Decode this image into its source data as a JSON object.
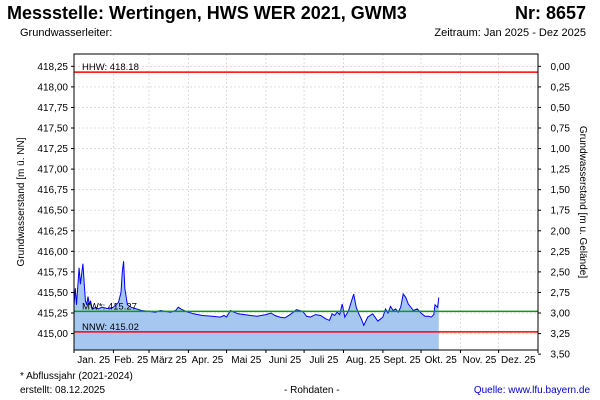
{
  "header": {
    "title": "Messstelle: Wertingen, HWS WER 2021, GWM3",
    "number": "Nr: 8657",
    "aquifer": "Grundwasserleiter:",
    "period": "Zeitraum: Jan 2025 - Dez 2025"
  },
  "footer": {
    "note": "* Abflussjahr (2021-2024)",
    "created": "erstellt:  08.12.2025",
    "rawdata": "- Rohdaten -",
    "source": "Quelle: www.lfu.bayern.de"
  },
  "chart_data": {
    "type": "area",
    "ylabel": "Grundwasserstand [m ü. NN]",
    "ylabel_right": "Grundwasserstand [m u. Gelände]",
    "ylim": [
      414.8,
      418.4
    ],
    "yticks": [
      415.0,
      415.25,
      415.5,
      415.75,
      416.0,
      416.25,
      416.5,
      416.75,
      417.0,
      417.25,
      417.5,
      417.75,
      418.0,
      418.25
    ],
    "ytick_labels": [
      "415,00",
      "415,25",
      "415,50",
      "415,75",
      "416,00",
      "416,25",
      "416,50",
      "416,75",
      "417,00",
      "417,25",
      "417,50",
      "417,75",
      "418,00",
      "418,25"
    ],
    "y2_offset": 418.25,
    "y2ticks": [
      0.0,
      0.25,
      0.5,
      0.75,
      1.0,
      1.25,
      1.5,
      1.75,
      2.0,
      2.25,
      2.5,
      2.75,
      3.0,
      3.25,
      3.5
    ],
    "y2tick_labels": [
      "0,00",
      "0,25",
      "0,50",
      "0,75",
      "1,00",
      "1,25",
      "1,50",
      "1,75",
      "2,00",
      "2,25",
      "2,50",
      "2,75",
      "3,00",
      "3,25",
      "3,50"
    ],
    "xlim": [
      "2025-01-01",
      "2026-01-01"
    ],
    "months": [
      "Jan. 25",
      "Feb. 25",
      "März 25",
      "Apr. 25",
      "Mai 25",
      "Juni 25",
      "Juli 25",
      "Aug. 25",
      "Sept. 25",
      "Okt. 25",
      "Nov. 25",
      "Dez. 25"
    ],
    "month_starts": [
      "2025-01-01",
      "2025-02-01",
      "2025-03-01",
      "2025-04-01",
      "2025-05-01",
      "2025-06-01",
      "2025-07-01",
      "2025-08-01",
      "2025-09-01",
      "2025-10-01",
      "2025-11-01",
      "2025-12-01",
      "2026-01-01"
    ],
    "grid": true,
    "reference_lines": [
      {
        "key": "hhw",
        "label": "HHW: 418.18",
        "value": 418.18,
        "color": "#ff0000"
      },
      {
        "key": "mw",
        "label": "MW*: 415.27",
        "value": 415.27,
        "color": "#00a000"
      },
      {
        "key": "nnw",
        "label": "NNW: 415.02",
        "value": 415.02,
        "color": "#ff0000"
      }
    ],
    "series": [
      {
        "line_color": "#0000ff",
        "fill_color": "#a6c8f0",
        "x": [
          "2025-01-01",
          "2025-01-02",
          "2025-01-03",
          "2025-01-05",
          "2025-01-06",
          "2025-01-08",
          "2025-01-10",
          "2025-01-11",
          "2025-01-12",
          "2025-01-13",
          "2025-01-14",
          "2025-01-15",
          "2025-01-16",
          "2025-01-18",
          "2025-01-20",
          "2025-01-23",
          "2025-01-26",
          "2025-01-29",
          "2025-02-01",
          "2025-02-03",
          "2025-02-05",
          "2025-02-07",
          "2025-02-08",
          "2025-02-09",
          "2025-02-10",
          "2025-02-12",
          "2025-02-15",
          "2025-02-19",
          "2025-02-23",
          "2025-03-01",
          "2025-03-06",
          "2025-03-10",
          "2025-03-14",
          "2025-03-18",
          "2025-03-22",
          "2025-03-24",
          "2025-03-26",
          "2025-03-30",
          "2025-04-05",
          "2025-04-12",
          "2025-04-20",
          "2025-04-26",
          "2025-04-29",
          "2025-05-01",
          "2025-05-04",
          "2025-05-10",
          "2025-05-20",
          "2025-05-25",
          "2025-05-28",
          "2025-06-01",
          "2025-06-05",
          "2025-06-08",
          "2025-06-12",
          "2025-06-16",
          "2025-06-20",
          "2025-06-25",
          "2025-06-30",
          "2025-07-03",
          "2025-07-06",
          "2025-07-10",
          "2025-07-14",
          "2025-07-18",
          "2025-07-21",
          "2025-07-23",
          "2025-07-25",
          "2025-07-27",
          "2025-07-29",
          "2025-07-31",
          "2025-08-02",
          "2025-08-04",
          "2025-08-05",
          "2025-08-07",
          "2025-08-09",
          "2025-08-11",
          "2025-08-13",
          "2025-08-15",
          "2025-08-17",
          "2025-08-20",
          "2025-08-24",
          "2025-08-28",
          "2025-09-01",
          "2025-09-03",
          "2025-09-05",
          "2025-09-07",
          "2025-09-09",
          "2025-09-11",
          "2025-09-13",
          "2025-09-15",
          "2025-09-17",
          "2025-09-19",
          "2025-09-21",
          "2025-09-25",
          "2025-09-28",
          "2025-10-01",
          "2025-10-04",
          "2025-10-07",
          "2025-10-09",
          "2025-10-11",
          "2025-10-12",
          "2025-10-14",
          "2025-10-15"
        ],
        "y": [
          415.35,
          415.55,
          415.35,
          415.8,
          415.6,
          415.85,
          415.4,
          415.35,
          415.45,
          415.35,
          415.4,
          415.32,
          415.3,
          415.32,
          415.3,
          415.32,
          415.31,
          415.3,
          415.32,
          415.35,
          415.38,
          415.5,
          415.75,
          415.88,
          415.55,
          415.35,
          415.32,
          415.3,
          415.28,
          415.27,
          415.26,
          415.28,
          415.27,
          415.26,
          415.28,
          415.32,
          415.3,
          415.27,
          415.24,
          415.22,
          415.21,
          415.2,
          415.22,
          415.2,
          415.28,
          415.24,
          415.22,
          415.21,
          415.22,
          415.23,
          415.25,
          415.22,
          415.2,
          415.19,
          415.23,
          415.29,
          415.27,
          415.21,
          415.2,
          415.23,
          415.22,
          415.18,
          415.16,
          415.24,
          415.22,
          415.26,
          415.23,
          415.36,
          415.2,
          415.25,
          415.28,
          415.38,
          415.48,
          415.32,
          415.24,
          415.18,
          415.1,
          415.2,
          415.24,
          415.15,
          415.2,
          415.3,
          415.25,
          415.33,
          415.28,
          415.3,
          415.26,
          415.32,
          415.48,
          415.44,
          415.36,
          415.28,
          415.3,
          415.25,
          415.21,
          415.21,
          415.2,
          415.23,
          415.35,
          415.32,
          415.44
        ]
      }
    ]
  }
}
